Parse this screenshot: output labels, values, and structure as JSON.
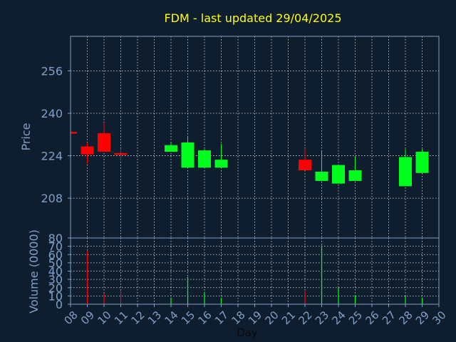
{
  "chart_data": {
    "type": "candlestick",
    "title": "FDM - last updated 29/04/2025",
    "price_panel": {
      "ylabel": "Price",
      "ylim": [
        193,
        269
      ],
      "yticks": [
        208,
        224,
        240,
        256
      ],
      "candles": [
        {
          "day": 8,
          "open": 233.0,
          "close": 232.5,
          "high": 233.0,
          "low": 232.5,
          "direction": "down"
        },
        {
          "day": 9,
          "open": 227.5,
          "close": 224.5,
          "high": 229.0,
          "low": 221.0,
          "direction": "down"
        },
        {
          "day": 10,
          "open": 232.5,
          "close": 225.5,
          "high": 236.5,
          "low": 225.5,
          "direction": "down"
        },
        {
          "day": 11,
          "open": 225.0,
          "close": 224.5,
          "high": 226.5,
          "low": 222.5,
          "direction": "down"
        },
        {
          "day": 14,
          "open": 225.5,
          "close": 228.0,
          "high": 229.0,
          "low": 225.5,
          "direction": "up"
        },
        {
          "day": 15,
          "open": 219.5,
          "close": 229.0,
          "high": 231.5,
          "low": 219.5,
          "direction": "up"
        },
        {
          "day": 16,
          "open": 219.5,
          "close": 226.0,
          "high": 226.5,
          "low": 219.5,
          "direction": "up"
        },
        {
          "day": 17,
          "open": 219.5,
          "close": 222.5,
          "high": 228.5,
          "low": 219.5,
          "direction": "up"
        },
        {
          "day": 22,
          "open": 222.5,
          "close": 218.5,
          "high": 226.5,
          "low": 218.5,
          "direction": "down"
        },
        {
          "day": 23,
          "open": 214.5,
          "close": 218.0,
          "high": 226.0,
          "low": 214.5,
          "direction": "up"
        },
        {
          "day": 24,
          "open": 213.5,
          "close": 220.5,
          "high": 220.5,
          "low": 213.5,
          "direction": "up"
        },
        {
          "day": 25,
          "open": 214.5,
          "close": 218.5,
          "high": 223.5,
          "low": 214.5,
          "direction": "up"
        },
        {
          "day": 28,
          "open": 212.5,
          "close": 223.5,
          "high": 226.5,
          "low": 212.5,
          "direction": "up"
        },
        {
          "day": 29,
          "open": 217.5,
          "close": 225.5,
          "high": 226.5,
          "low": 217.5,
          "direction": "up"
        }
      ]
    },
    "volume_panel": {
      "ylabel": "Volume (0000)",
      "ylim": [
        0,
        80
      ],
      "yticks": [
        0,
        10,
        20,
        30,
        40,
        50,
        60,
        70,
        80
      ],
      "bars": [
        {
          "day": 9,
          "value": 64,
          "direction": "down"
        },
        {
          "day": 10,
          "value": 13,
          "direction": "down"
        },
        {
          "day": 11,
          "value": 16,
          "direction": "down"
        },
        {
          "day": 14,
          "value": 8,
          "direction": "up"
        },
        {
          "day": 15,
          "value": 33,
          "direction": "up"
        },
        {
          "day": 16,
          "value": 15,
          "direction": "up"
        },
        {
          "day": 17,
          "value": 8,
          "direction": "up"
        },
        {
          "day": 22,
          "value": 16,
          "direction": "down"
        },
        {
          "day": 23,
          "value": 71,
          "direction": "up"
        },
        {
          "day": 24,
          "value": 20,
          "direction": "up"
        },
        {
          "day": 25,
          "value": 11,
          "direction": "up"
        },
        {
          "day": 28,
          "value": 10,
          "direction": "up"
        },
        {
          "day": 29,
          "value": 8,
          "direction": "up"
        }
      ]
    },
    "xlabel": "Day",
    "xlim": [
      8,
      30
    ],
    "xtick_labels": [
      "08",
      "09",
      "10",
      "11",
      "12",
      "13",
      "14",
      "15",
      "16",
      "17",
      "18",
      "19",
      "20",
      "21",
      "22",
      "23",
      "24",
      "25",
      "26",
      "27",
      "28",
      "29",
      "30"
    ],
    "grid": true,
    "colors": {
      "background": "#0f1e2e",
      "title": "#ffff00",
      "axis_text": "#7f9fc8",
      "axis_line": "#7f9fc8",
      "grid": "#ffffff",
      "up": "#00ff1e",
      "down": "#ff0000"
    }
  }
}
